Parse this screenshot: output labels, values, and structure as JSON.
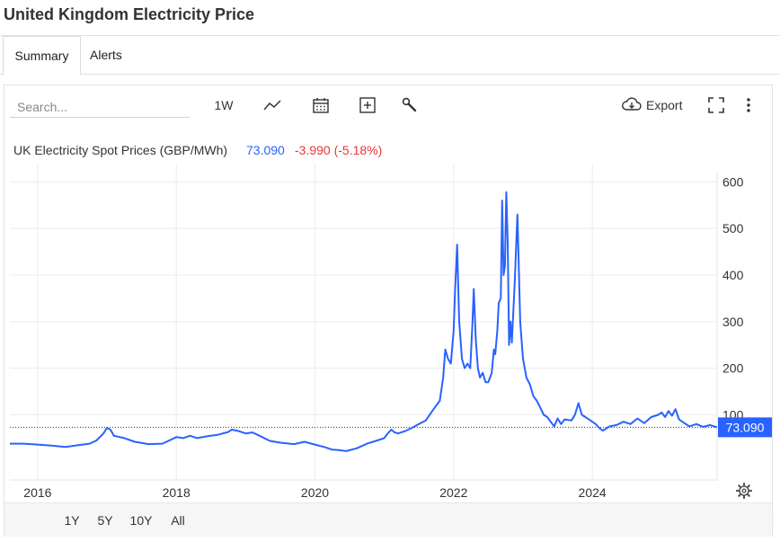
{
  "app": {
    "title": "United Kingdom Electricity Price"
  },
  "tabs": [
    {
      "label": "Summary"
    },
    {
      "label": "Alerts"
    }
  ],
  "toolbar": {
    "search_placeholder": "Search...",
    "interval_label": "1W",
    "export_label": "Export"
  },
  "legend": {
    "series_name": "UK Electricity Spot Prices (GBP/MWh)",
    "last_value": "73.090",
    "change": "-3.990 (-5.18%)"
  },
  "price_tag": "73.090",
  "ranges": [
    {
      "label": "1Y"
    },
    {
      "label": "5Y"
    },
    {
      "label": "10Y"
    },
    {
      "label": "All"
    }
  ],
  "active_range": "10Y",
  "colors": {
    "line": "#2962ff",
    "negative": "#e53935",
    "tag_bg": "#2962ff",
    "grid": "#ececec"
  },
  "chart_data": {
    "type": "line",
    "title": "",
    "xlabel": "",
    "ylabel": "",
    "xlim": [
      2015.6,
      2025.8
    ],
    "ylim": [
      -40,
      620
    ],
    "x_ticks": [
      2016,
      2018,
      2020,
      2022,
      2024
    ],
    "y_ticks": [
      100,
      200,
      300,
      400,
      500,
      600
    ],
    "grid": true,
    "reference_line": 73.09,
    "series": [
      {
        "name": "UK Electricity Spot Prices (GBP/MWh)",
        "points": [
          [
            2015.6,
            38
          ],
          [
            2015.8,
            38
          ],
          [
            2016.0,
            36
          ],
          [
            2016.2,
            34
          ],
          [
            2016.4,
            31
          ],
          [
            2016.6,
            35
          ],
          [
            2016.75,
            38
          ],
          [
            2016.85,
            45
          ],
          [
            2016.95,
            60
          ],
          [
            2017.0,
            72
          ],
          [
            2017.05,
            68
          ],
          [
            2017.1,
            55
          ],
          [
            2017.25,
            50
          ],
          [
            2017.4,
            42
          ],
          [
            2017.6,
            37
          ],
          [
            2017.8,
            38
          ],
          [
            2017.9,
            45
          ],
          [
            2018.0,
            52
          ],
          [
            2018.1,
            50
          ],
          [
            2018.2,
            55
          ],
          [
            2018.3,
            50
          ],
          [
            2018.45,
            54
          ],
          [
            2018.6,
            57
          ],
          [
            2018.75,
            63
          ],
          [
            2018.8,
            68
          ],
          [
            2018.9,
            65
          ],
          [
            2019.0,
            60
          ],
          [
            2019.1,
            62
          ],
          [
            2019.2,
            55
          ],
          [
            2019.35,
            44
          ],
          [
            2019.5,
            40
          ],
          [
            2019.7,
            37
          ],
          [
            2019.85,
            42
          ],
          [
            2019.95,
            38
          ],
          [
            2020.0,
            36
          ],
          [
            2020.15,
            30
          ],
          [
            2020.25,
            25
          ],
          [
            2020.35,
            24
          ],
          [
            2020.45,
            22
          ],
          [
            2020.6,
            28
          ],
          [
            2020.75,
            38
          ],
          [
            2020.9,
            45
          ],
          [
            2021.0,
            50
          ],
          [
            2021.05,
            60
          ],
          [
            2021.1,
            68
          ],
          [
            2021.15,
            62
          ],
          [
            2021.2,
            60
          ],
          [
            2021.3,
            65
          ],
          [
            2021.4,
            72
          ],
          [
            2021.5,
            80
          ],
          [
            2021.6,
            88
          ],
          [
            2021.7,
            110
          ],
          [
            2021.8,
            130
          ],
          [
            2021.85,
            180
          ],
          [
            2021.88,
            240
          ],
          [
            2021.92,
            220
          ],
          [
            2021.96,
            210
          ],
          [
            2022.0,
            280
          ],
          [
            2022.02,
            360
          ],
          [
            2022.05,
            465
          ],
          [
            2022.08,
            300
          ],
          [
            2022.12,
            220
          ],
          [
            2022.16,
            200
          ],
          [
            2022.2,
            210
          ],
          [
            2022.24,
            200
          ],
          [
            2022.27,
            290
          ],
          [
            2022.29,
            370
          ],
          [
            2022.32,
            260
          ],
          [
            2022.35,
            200
          ],
          [
            2022.38,
            180
          ],
          [
            2022.42,
            190
          ],
          [
            2022.46,
            170
          ],
          [
            2022.5,
            170
          ],
          [
            2022.55,
            190
          ],
          [
            2022.58,
            240
          ],
          [
            2022.6,
            230
          ],
          [
            2022.63,
            280
          ],
          [
            2022.65,
            340
          ],
          [
            2022.68,
            350
          ],
          [
            2022.7,
            560
          ],
          [
            2022.72,
            400
          ],
          [
            2022.74,
            420
          ],
          [
            2022.76,
            578
          ],
          [
            2022.78,
            470
          ],
          [
            2022.8,
            250
          ],
          [
            2022.82,
            300
          ],
          [
            2022.84,
            255
          ],
          [
            2022.88,
            380
          ],
          [
            2022.92,
            530
          ],
          [
            2022.96,
            300
          ],
          [
            2023.0,
            220
          ],
          [
            2023.05,
            180
          ],
          [
            2023.1,
            165
          ],
          [
            2023.15,
            140
          ],
          [
            2023.2,
            130
          ],
          [
            2023.25,
            115
          ],
          [
            2023.3,
            100
          ],
          [
            2023.35,
            95
          ],
          [
            2023.4,
            85
          ],
          [
            2023.45,
            75
          ],
          [
            2023.5,
            92
          ],
          [
            2023.55,
            80
          ],
          [
            2023.6,
            90
          ],
          [
            2023.7,
            88
          ],
          [
            2023.75,
            100
          ],
          [
            2023.8,
            125
          ],
          [
            2023.85,
            100
          ],
          [
            2023.9,
            95
          ],
          [
            2023.95,
            90
          ],
          [
            2024.0,
            85
          ],
          [
            2024.05,
            80
          ],
          [
            2024.1,
            72
          ],
          [
            2024.15,
            66
          ],
          [
            2024.25,
            75
          ],
          [
            2024.35,
            78
          ],
          [
            2024.45,
            85
          ],
          [
            2024.55,
            80
          ],
          [
            2024.65,
            92
          ],
          [
            2024.75,
            82
          ],
          [
            2024.85,
            95
          ],
          [
            2024.95,
            100
          ],
          [
            2025.0,
            105
          ],
          [
            2025.05,
            95
          ],
          [
            2025.1,
            108
          ],
          [
            2025.15,
            98
          ],
          [
            2025.2,
            112
          ],
          [
            2025.25,
            90
          ],
          [
            2025.3,
            85
          ],
          [
            2025.4,
            75
          ],
          [
            2025.5,
            80
          ],
          [
            2025.6,
            74
          ],
          [
            2025.7,
            78
          ],
          [
            2025.8,
            73
          ]
        ]
      }
    ]
  }
}
